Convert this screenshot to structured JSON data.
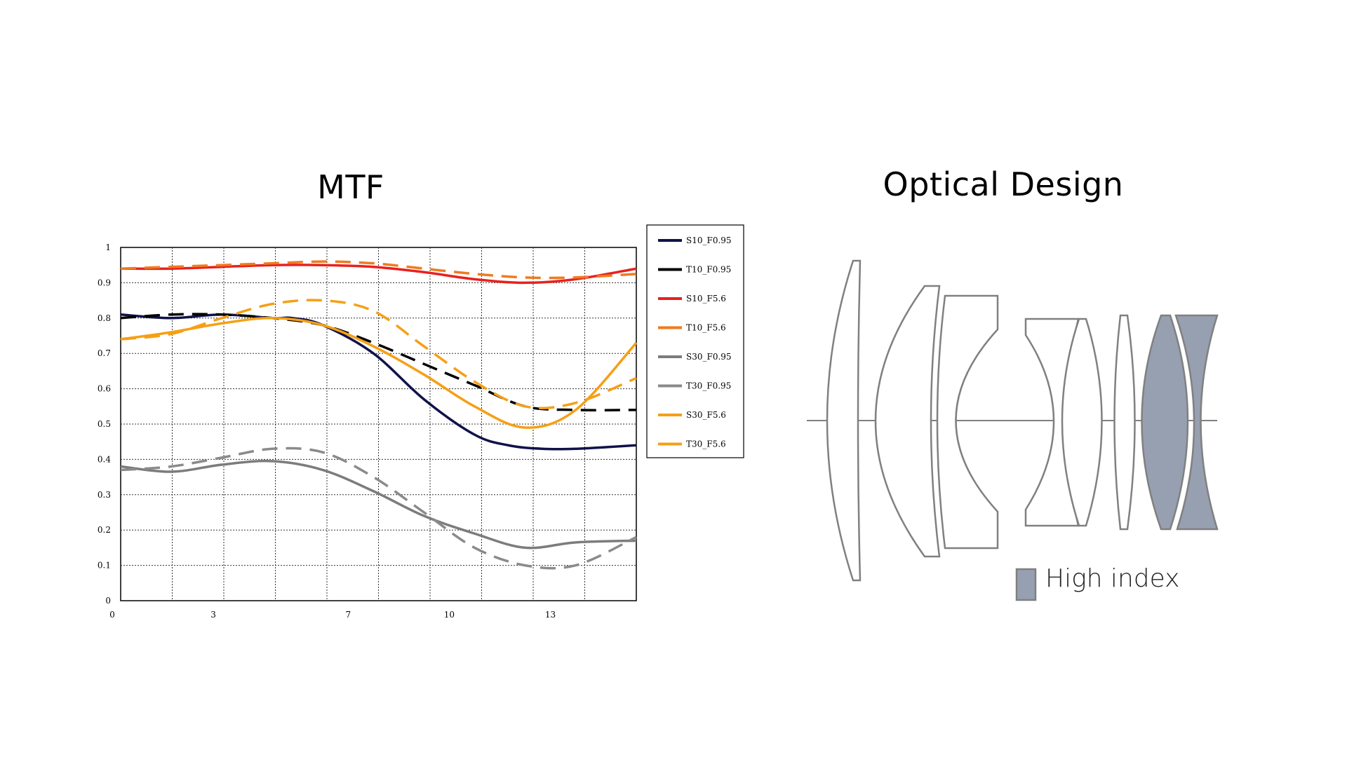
{
  "titles": {
    "mtf": "MTF",
    "optical_design": "Optical Design"
  },
  "chart_data": {
    "type": "line",
    "title": "MTF",
    "xlabel": "",
    "ylabel": "",
    "xlim": [
      0,
      15.3
    ],
    "ylim": [
      0,
      1
    ],
    "x_ticks": [
      0,
      3,
      7,
      10,
      13
    ],
    "y_ticks": [
      0,
      0.1,
      0.2,
      0.3,
      0.4,
      0.5,
      0.6,
      0.7,
      0.8,
      0.9,
      1
    ],
    "grid": true,
    "legend_position": "right",
    "series": [
      {
        "name": "S10_F0.95",
        "color": "#10124a",
        "dash": "solid",
        "x": [
          0,
          1.5,
          3,
          4.5,
          5.1,
          6,
          7.5,
          9,
          10.5,
          11.5,
          12.5,
          13.5,
          15.3
        ],
        "y": [
          0.81,
          0.8,
          0.81,
          0.8,
          0.8,
          0.78,
          0.7,
          0.57,
          0.47,
          0.44,
          0.43,
          0.43,
          0.44
        ]
      },
      {
        "name": "T10_F0.95",
        "color": "#000000",
        "dash": "dashed",
        "x": [
          0,
          1.5,
          3,
          4.5,
          6,
          7.5,
          9,
          10.5,
          12,
          13.5,
          15.3
        ],
        "y": [
          0.8,
          0.81,
          0.81,
          0.8,
          0.78,
          0.73,
          0.67,
          0.61,
          0.55,
          0.54,
          0.54
        ]
      },
      {
        "name": "S10_F5.6",
        "color": "#e8211e",
        "dash": "solid",
        "x": [
          0,
          1.5,
          3,
          4.5,
          6,
          7.5,
          9,
          10.5,
          12,
          13.5,
          15.3
        ],
        "y": [
          0.94,
          0.94,
          0.945,
          0.95,
          0.95,
          0.945,
          0.93,
          0.91,
          0.9,
          0.91,
          0.94
        ]
      },
      {
        "name": "T10_F5.6",
        "color": "#f07a1f",
        "dash": "dashed",
        "x": [
          0,
          1.5,
          3,
          4.5,
          6,
          7.5,
          9,
          10.5,
          12,
          13.5,
          15.3
        ],
        "y": [
          0.94,
          0.945,
          0.95,
          0.955,
          0.96,
          0.955,
          0.94,
          0.925,
          0.915,
          0.915,
          0.925
        ]
      },
      {
        "name": "S30_F0.95",
        "color": "#7c7c7c",
        "dash": "solid",
        "x": [
          0,
          1.5,
          3,
          4.5,
          6,
          7.5,
          9,
          10.5,
          12,
          13.5,
          15.3
        ],
        "y": [
          0.38,
          0.365,
          0.385,
          0.395,
          0.37,
          0.31,
          0.24,
          0.19,
          0.15,
          0.165,
          0.17
        ]
      },
      {
        "name": "T30_F0.95",
        "color": "#8a8a8a",
        "dash": "dashed",
        "x": [
          0,
          1.5,
          3,
          4.5,
          6,
          7.5,
          9,
          10.5,
          12,
          13.5,
          15.3
        ],
        "y": [
          0.37,
          0.38,
          0.405,
          0.43,
          0.42,
          0.35,
          0.25,
          0.15,
          0.1,
          0.1,
          0.18
        ]
      },
      {
        "name": "S30_F5.6",
        "color": "#f5a015",
        "dash": "solid",
        "x": [
          0,
          1.5,
          3,
          4.5,
          6,
          7.5,
          9,
          10.5,
          12,
          13.5,
          15.3
        ],
        "y": [
          0.74,
          0.76,
          0.785,
          0.8,
          0.78,
          0.72,
          0.64,
          0.55,
          0.49,
          0.54,
          0.73
        ]
      },
      {
        "name": "T30_F5.6",
        "color": "#f5a015",
        "dash": "dashed",
        "x": [
          0,
          1.5,
          3,
          4.5,
          6,
          7.5,
          9,
          10.5,
          12,
          13.5,
          15.3
        ],
        "y": [
          0.74,
          0.755,
          0.8,
          0.84,
          0.85,
          0.82,
          0.72,
          0.62,
          0.55,
          0.56,
          0.63
        ]
      }
    ]
  },
  "optical_design": {
    "legend_label": "High index",
    "high_index_color": "#96a0b1",
    "outline_color": "#808080",
    "axis_color": "#808080"
  }
}
